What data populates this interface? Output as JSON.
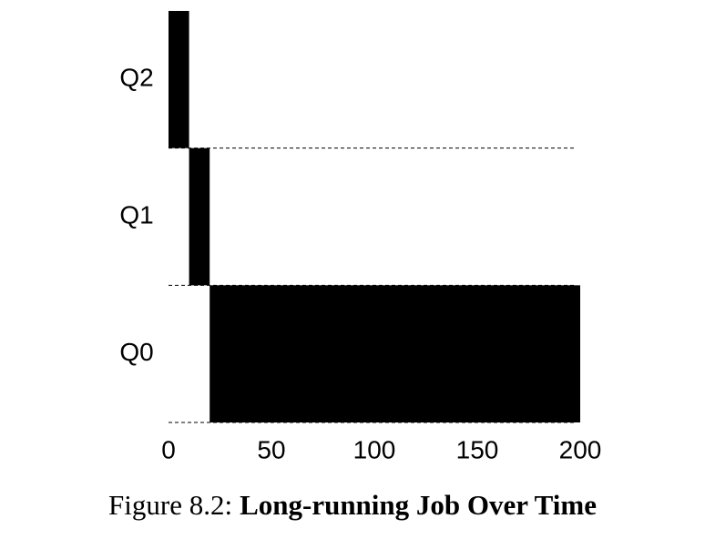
{
  "chart_data": {
    "type": "timeline",
    "caption_label": "Figure 8.2:",
    "title": "Long-running Job Over Time",
    "lanes": [
      {
        "name": "Q2",
        "start": 0,
        "end": 10
      },
      {
        "name": "Q1",
        "start": 10,
        "end": 20
      },
      {
        "name": "Q0",
        "start": 20,
        "end": 200
      }
    ],
    "color": "#000000",
    "xlim": [
      0,
      200
    ],
    "xticks": [
      0,
      50,
      100,
      150,
      200
    ]
  }
}
